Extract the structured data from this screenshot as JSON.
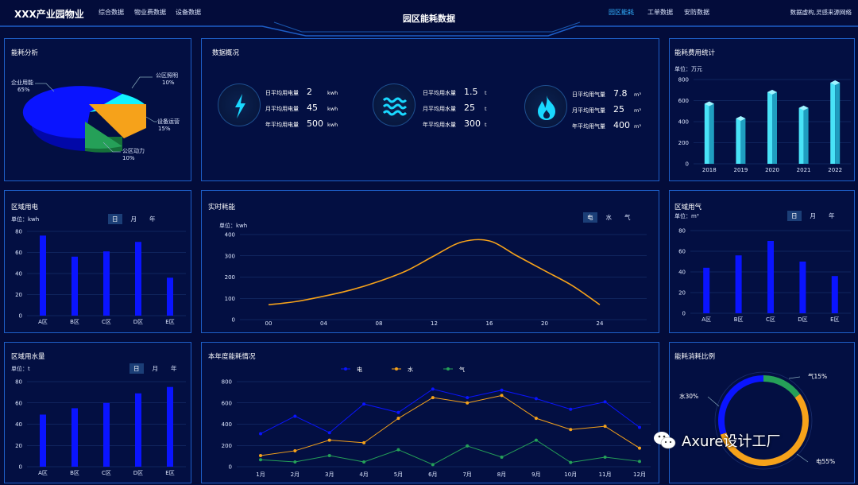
{
  "header": {
    "brand": "XXX产业园物业",
    "nav_left": [
      "综合数据",
      "物业费数据",
      "设备数据"
    ],
    "page_title": "园区能耗数据",
    "nav_right": [
      "园区能耗",
      "工单数据",
      "安防数据"
    ],
    "source": "数据虚构,灵感来源网络",
    "colors": {
      "accent": "#32b0ff",
      "bg": "#030c3a",
      "border": "#1e5fc8"
    }
  },
  "energy_analysis": {
    "title": "能耗分析",
    "slices": [
      {
        "label": "企业用能",
        "pct": "65%",
        "value": 65,
        "color": "#0a14ff"
      },
      {
        "label": "公区照明",
        "pct": "10%",
        "value": 10,
        "color": "#12f2ff"
      },
      {
        "label": "设备运营",
        "pct": "15%",
        "value": 15,
        "color": "#f6a21a"
      },
      {
        "label": "公区动力",
        "pct": "10%",
        "value": 10,
        "color": "#25a058"
      }
    ]
  },
  "overview": {
    "title": "数据概况",
    "groups": [
      {
        "icon": "lightning-icon",
        "color": "#19d8ff",
        "rows": [
          {
            "label": "日平均用电量",
            "value": "2",
            "unit": "kwh"
          },
          {
            "label": "月平均用电量",
            "value": "45",
            "unit": "kwh"
          },
          {
            "label": "年平均用电量",
            "value": "500",
            "unit": "kwh"
          }
        ]
      },
      {
        "icon": "water-waves-icon",
        "color": "#19d8ff",
        "rows": [
          {
            "label": "日平均用水量",
            "value": "1.5",
            "unit": "t"
          },
          {
            "label": "月平均用水量",
            "value": "25",
            "unit": "t"
          },
          {
            "label": "年平均用水量",
            "value": "300",
            "unit": "t"
          }
        ]
      },
      {
        "icon": "flame-icon",
        "color": "#19d8ff",
        "rows": [
          {
            "label": "日平均用气量",
            "value": "7.8",
            "unit": "m³"
          },
          {
            "label": "月平均用气量",
            "value": "25",
            "unit": "m³"
          },
          {
            "label": "年平均用气量",
            "value": "400",
            "unit": "m³"
          }
        ]
      }
    ]
  },
  "cost_stats": {
    "title": "能耗费用统计",
    "unit": "单位：万元"
  },
  "elec_region": {
    "title": "区域用电",
    "unit": "单位：kwh",
    "tabs": [
      "日",
      "月",
      "年"
    ],
    "active_tab": 0
  },
  "realtime": {
    "title": "实时耗能",
    "unit": "单位：kwh",
    "tabs": [
      "电",
      "水",
      "气"
    ],
    "active_tab": 0
  },
  "gas_region": {
    "title": "区域用气",
    "unit": "单位：m³",
    "tabs": [
      "日",
      "月",
      "年"
    ],
    "active_tab": 0
  },
  "water_region": {
    "title": "区域用水量",
    "unit": "单位：t",
    "tabs": [
      "日",
      "月",
      "年"
    ],
    "active_tab": 0
  },
  "annual": {
    "title": "本年度能耗情况"
  },
  "ratio": {
    "title": "能耗消耗比例",
    "items": [
      {
        "label": "气15%",
        "value": 15,
        "color": "#25a058"
      },
      {
        "label": "电55%",
        "value": 55,
        "color": "#f6a21a"
      },
      {
        "label": "水30%",
        "value": 30,
        "color": "#0a14ff"
      }
    ]
  },
  "watermark": {
    "text": "Axure设计工厂",
    "icon": "wechat-icon"
  },
  "chart_data": [
    {
      "id": "cost",
      "type": "bar",
      "categories": [
        "2018",
        "2019",
        "2020",
        "2021",
        "2022"
      ],
      "values": [
        570,
        430,
        680,
        530,
        770
      ],
      "ylim": [
        0,
        800
      ],
      "yticks": [
        0,
        200,
        400,
        600,
        800
      ],
      "color": "#38d4f0"
    },
    {
      "id": "elec",
      "type": "bar",
      "categories": [
        "A区",
        "B区",
        "C区",
        "D区",
        "E区"
      ],
      "values": [
        76,
        56,
        61,
        70,
        36
      ],
      "ylim": [
        0,
        80
      ],
      "yticks": [
        0,
        20,
        40,
        60,
        80
      ],
      "color": "#0a14ff"
    },
    {
      "id": "gas",
      "type": "bar",
      "categories": [
        "A区",
        "B区",
        "C区",
        "D区",
        "E区"
      ],
      "values": [
        44,
        56,
        70,
        50,
        36
      ],
      "ylim": [
        0,
        80
      ],
      "yticks": [
        0,
        20,
        40,
        60,
        80
      ],
      "color": "#0a14ff"
    },
    {
      "id": "water",
      "type": "bar",
      "categories": [
        "A区",
        "B区",
        "C区",
        "D区",
        "E区"
      ],
      "values": [
        49,
        55,
        60,
        69,
        75
      ],
      "ylim": [
        0,
        80
      ],
      "yticks": [
        0,
        20,
        40,
        60,
        80
      ],
      "color": "#0a14ff"
    },
    {
      "id": "realtime",
      "type": "line",
      "x": [
        0,
        2,
        4,
        6,
        8,
        10,
        12,
        14,
        16,
        18,
        20,
        22,
        24
      ],
      "xticks": [
        "00",
        "04",
        "08",
        "12",
        "16",
        "20",
        "24"
      ],
      "values": [
        70,
        85,
        110,
        140,
        180,
        230,
        300,
        365,
        370,
        300,
        230,
        160,
        70
      ],
      "ylim": [
        0,
        400
      ],
      "yticks": [
        0,
        100,
        200,
        300,
        400
      ],
      "color": "#f6a21a"
    },
    {
      "id": "annual",
      "type": "line",
      "categories": [
        "1月",
        "2月",
        "3月",
        "4月",
        "5月",
        "6月",
        "7月",
        "8月",
        "9月",
        "10月",
        "11月",
        "12月"
      ],
      "ylim": [
        0,
        800
      ],
      "yticks": [
        0,
        200,
        400,
        600,
        800
      ],
      "series": [
        {
          "name": "电",
          "color": "#0a14ff",
          "values": [
            310,
            475,
            320,
            590,
            510,
            730,
            650,
            720,
            640,
            540,
            610,
            370
          ]
        },
        {
          "name": "水",
          "color": "#f6a21a",
          "values": [
            105,
            150,
            250,
            225,
            455,
            650,
            600,
            670,
            455,
            350,
            380,
            175
          ]
        },
        {
          "name": "气",
          "color": "#25a058",
          "values": [
            65,
            45,
            105,
            45,
            160,
            20,
            195,
            90,
            250,
            40,
            90,
            50
          ]
        }
      ]
    }
  ]
}
